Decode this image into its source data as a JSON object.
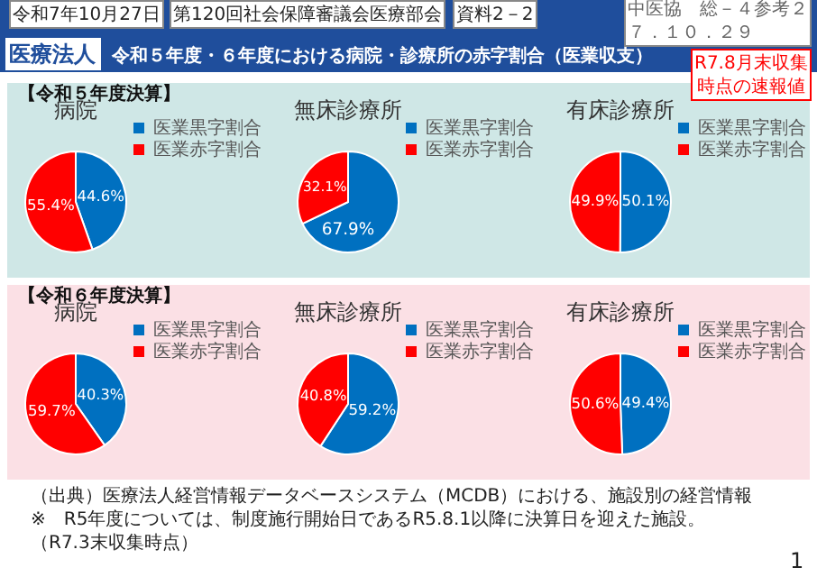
{
  "chart_data": [
    {
      "type": "pie",
      "title": "病院",
      "subtitle": "【令和５年度決算】",
      "categories": [
        "医業黒字割合",
        "医業赤字割合"
      ],
      "values": [
        44.6,
        55.4
      ],
      "colors": [
        "#0070c0",
        "#ff0000"
      ],
      "value_labels": [
        "44.6%",
        "55.4%"
      ],
      "legend": "top right",
      "annotations": [
        "医療法人",
        "令和５年度・６年度における病院・診療所の赤字割合（医業収支）",
        "令和7年10月27日",
        "第120回社会保障審議会医療部会",
        "資料2－2",
        "中医協　総－４参考２７．１０．２９",
        "R7.8月末収集時点の速報値"
      ]
    },
    {
      "type": "pie",
      "title": "無床診療所",
      "categories": [
        "医業黒字割合",
        "医業赤字割合"
      ],
      "values": [
        67.9,
        32.1
      ],
      "colors": [
        "#0070c0",
        "#ff0000"
      ],
      "value_labels": [
        "67.9%",
        "32.1%"
      ],
      "legend": "top right"
    },
    {
      "type": "pie",
      "title": "有床診療所",
      "categories": [
        "医業黒字割合",
        "医業赤字割合"
      ],
      "values": [
        50.1,
        49.9
      ],
      "colors": [
        "#0070c0",
        "#ff0000"
      ],
      "value_labels": [
        "50.1%",
        "49.9%"
      ],
      "legend": "top right"
    },
    {
      "type": "pie",
      "title": "病院",
      "subtitle": "【令和６年度決算】",
      "categories": [
        "医業黒字割合",
        "医業赤字割合"
      ],
      "values": [
        40.3,
        59.7
      ],
      "colors": [
        "#0070c0",
        "#ff0000"
      ],
      "value_labels": [
        "40.3%",
        "59.7%"
      ],
      "legend": "top right"
    },
    {
      "type": "pie",
      "title": "無床診療所",
      "categories": [
        "医業黒字割合",
        "医業赤字割合"
      ],
      "values": [
        59.2,
        40.8
      ],
      "colors": [
        "#0070c0",
        "#ff0000"
      ],
      "value_labels": [
        "59.2%",
        "40.8%"
      ],
      "legend": "top right"
    },
    {
      "type": "pie",
      "title": "有床診療所",
      "categories": [
        "医業黒字割合",
        "医業赤字割合"
      ],
      "values": [
        49.4,
        50.6
      ],
      "colors": [
        "#0070c0",
        "#ff0000"
      ],
      "value_labels": [
        "49.4%",
        "50.6%"
      ],
      "legend": "top right",
      "annotations": [
        "（出典）医療法人経営情報データベースシステム（MCDB）における、施設別の経営情報",
        "※　R5年度については、制度施行開始日であるR5.8.1以降に決算日を迎えた施設。（R7.3末収集時点）",
        "1"
      ]
    }
  ]
}
